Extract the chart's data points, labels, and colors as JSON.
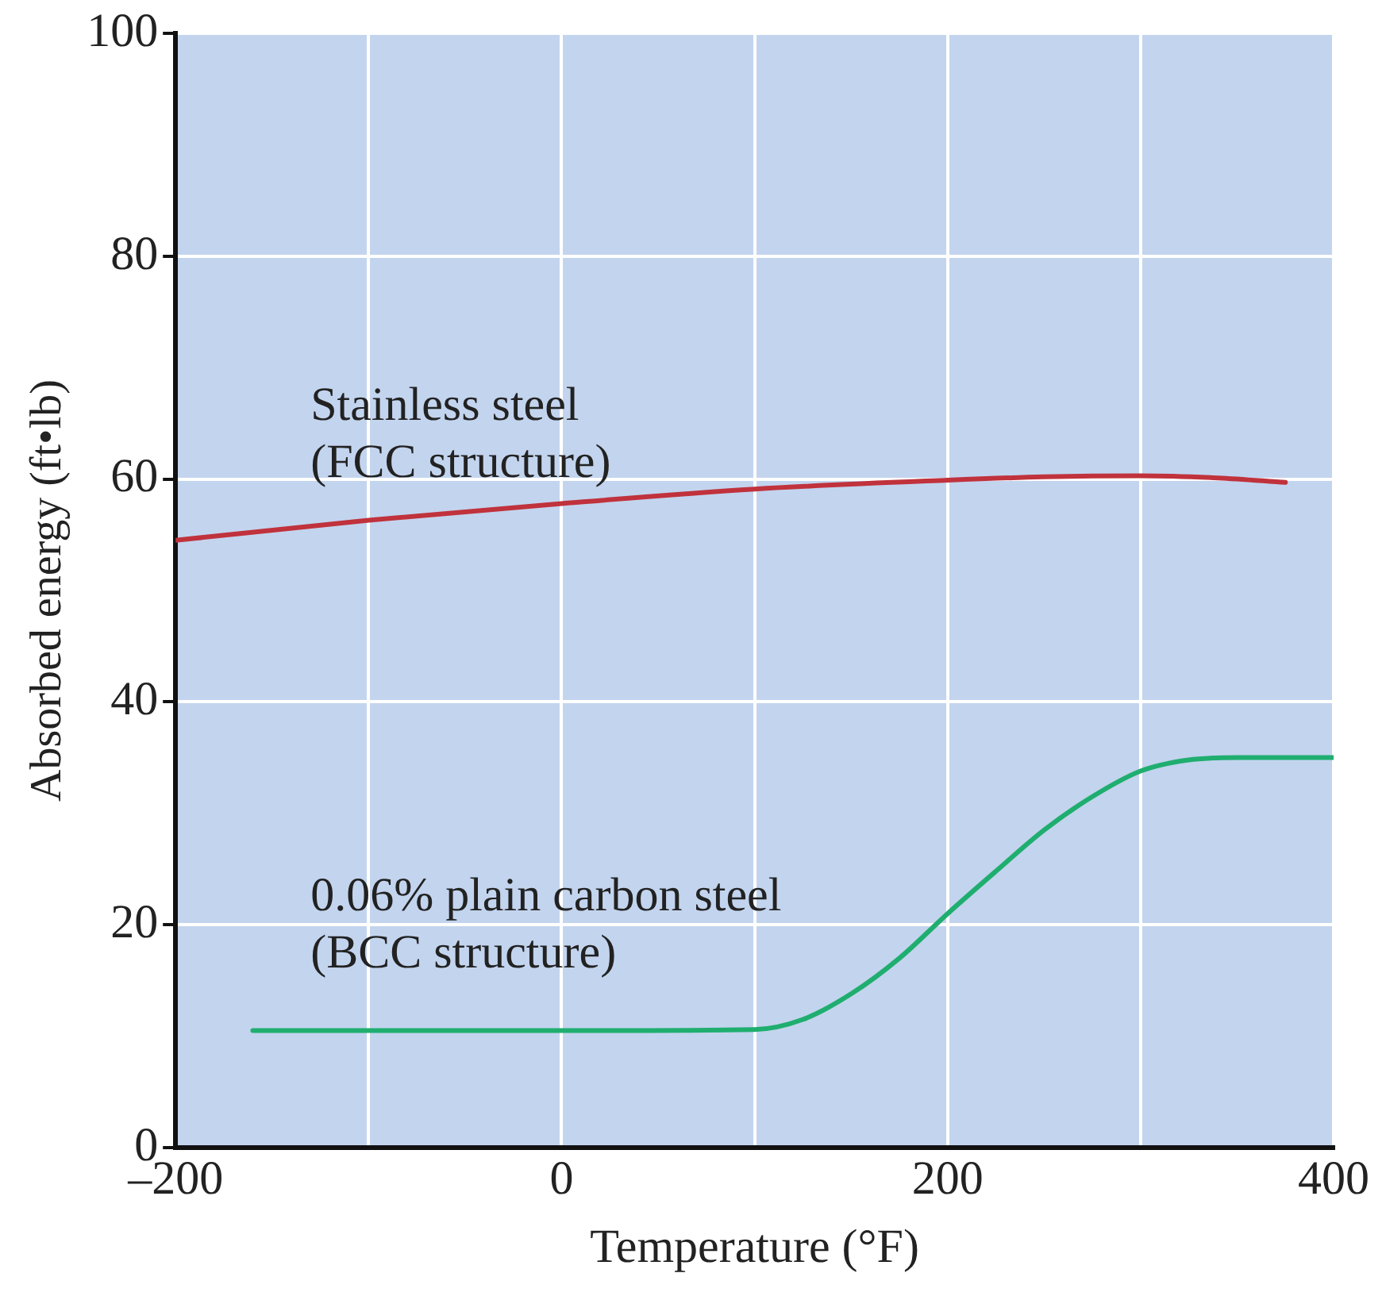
{
  "chart_data": {
    "type": "line",
    "xlabel": "Temperature (°F)",
    "ylabel": "Absorbed energy (ft•lb)",
    "xlim": [
      -200,
      400
    ],
    "ylim": [
      0,
      100
    ],
    "xticks": [
      {
        "value": -200,
        "label": "–200"
      },
      {
        "value": -100,
        "label": null
      },
      0,
      {
        "value": 100,
        "label": null
      },
      200,
      {
        "value": 300,
        "label": null
      },
      400
    ],
    "yticks": [
      0,
      20,
      40,
      60,
      80,
      100
    ],
    "grid": true,
    "legend": false,
    "marker": "none",
    "line_style": "solid",
    "series": [
      {
        "name": "Stainless steel (FCC structure)",
        "color": "#c0323c",
        "x": [
          -200,
          -100,
          0,
          100,
          200,
          250,
          300,
          340,
          375
        ],
        "values": [
          54.5,
          56.3,
          57.8,
          59.1,
          59.9,
          60.2,
          60.3,
          60.1,
          59.7
        ]
      },
      {
        "name": "0.06% plain carbon steel (BCC structure)",
        "color": "#1fae6f",
        "x": [
          -160,
          0,
          100,
          125,
          150,
          175,
          200,
          225,
          250,
          275,
          300,
          325,
          350,
          400
        ],
        "values": [
          10.5,
          10.5,
          10.6,
          11.5,
          13.8,
          17,
          21,
          24.8,
          28.5,
          31.5,
          33.8,
          34.8,
          35,
          35
        ]
      }
    ]
  }
}
